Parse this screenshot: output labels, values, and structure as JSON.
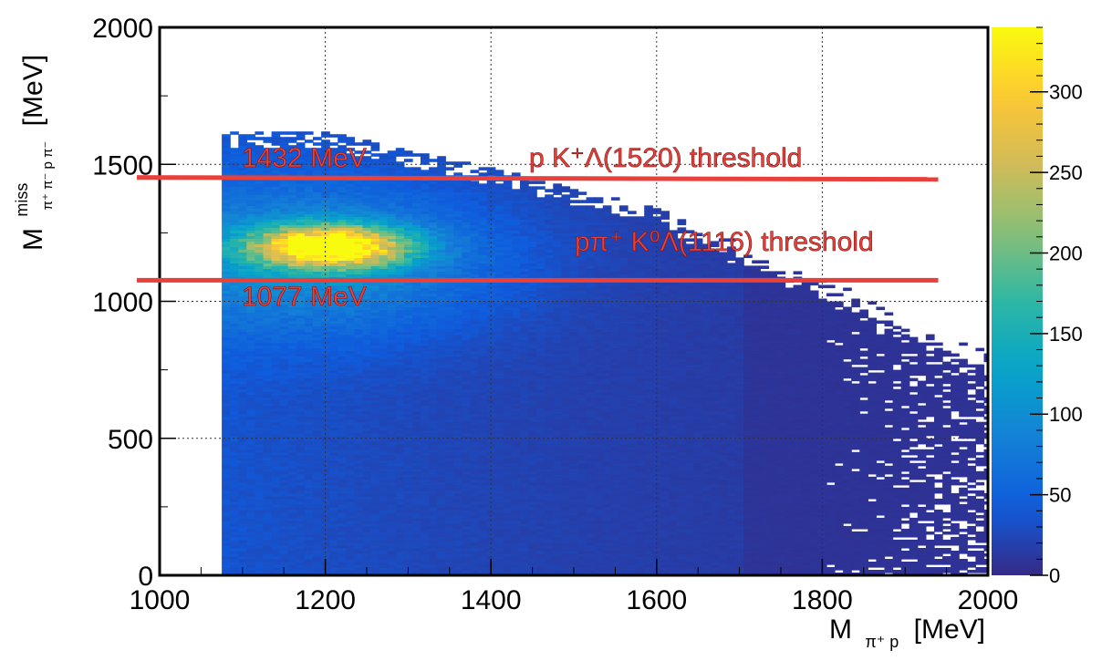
{
  "chart_data": {
    "type": "heatmap",
    "title": "",
    "x_axis": {
      "label_main": "M",
      "label_sub": "π⁺ p",
      "label_unit": "[MeV]",
      "range": [
        1000,
        2000
      ],
      "ticks": [
        1000,
        1200,
        1400,
        1600,
        1800,
        2000
      ],
      "tick_labels": [
        "1000",
        "1200",
        "1400",
        "1600",
        "1800",
        "2000"
      ]
    },
    "y_axis": {
      "label_main": "M",
      "label_sup": "miss",
      "label_sub": "π⁺ π⁻ p π⁻",
      "label_unit": "[MeV]",
      "range": [
        0,
        2000
      ],
      "ticks": [
        0,
        500,
        1000,
        1500,
        2000
      ],
      "tick_labels": [
        "0",
        "500",
        "1000",
        "1500",
        "2000"
      ]
    },
    "colorbar": {
      "range": [
        0,
        340
      ],
      "ticks": [
        0,
        50,
        100,
        150,
        200,
        250,
        300
      ],
      "tick_labels": [
        "0",
        "50",
        "100",
        "150",
        "200",
        "250",
        "300"
      ],
      "colors": [
        "#352a87",
        "#0f5cdd",
        "#1481d6",
        "#06a4ca",
        "#2eb7a4",
        "#87bf77",
        "#d1bb59",
        "#fec832",
        "#f9fb0e"
      ]
    },
    "grid": true,
    "distribution": {
      "x_min": 1075,
      "peak": [
        1200,
        1195
      ],
      "peak_value": 330,
      "upper_edge": [
        [
          1075,
          1620
        ],
        [
          1200,
          1610
        ],
        [
          1400,
          1480
        ],
        [
          1600,
          1330
        ],
        [
          1800,
          1080
        ],
        [
          2000,
          800
        ]
      ]
    },
    "lines": [
      {
        "name": "p K⁺Λ(1520) threshold",
        "y": 1432,
        "x_range": [
          1000,
          1940
        ],
        "color": "#e8413c"
      },
      {
        "name": "pπ⁺ K⁰Λ(1116) threshold",
        "y": 1077,
        "x_range": [
          1000,
          1940
        ],
        "color": "#e8413c"
      }
    ],
    "annotations": [
      {
        "text": "1432 MeV",
        "color": "#e8413c"
      },
      {
        "text": "p K⁺Λ(1520) threshold",
        "color": "#e8413c"
      },
      {
        "text": "pπ⁺ K⁰Λ(1116) threshold",
        "color": "#e8413c"
      },
      {
        "text": "1077 MeV",
        "color": "#e8413c"
      }
    ]
  }
}
